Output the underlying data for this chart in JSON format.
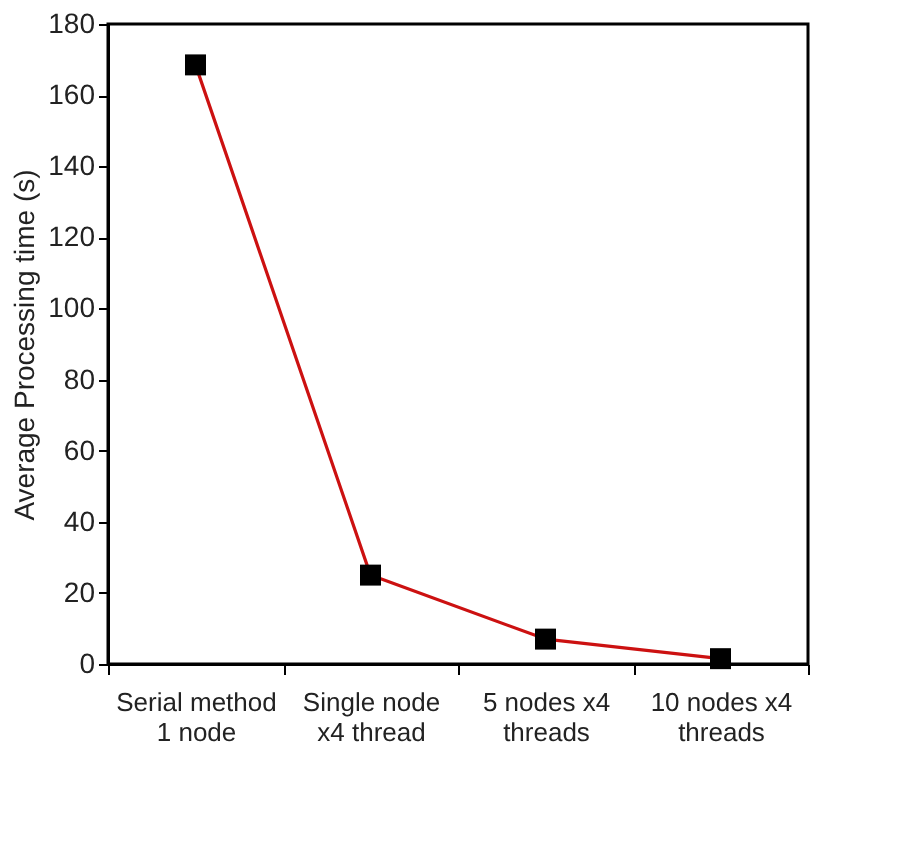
{
  "chart_data": {
    "type": "line",
    "ylabel": "Average Processing time (s)",
    "categories": [
      "Serial method\n1 node",
      "Single node\nx4 thread",
      "5  nodes  x4\nthreads",
      "10  nodes  x4\nthreads"
    ],
    "series": [
      {
        "color": "#cc1111",
        "values": [
          168.5,
          25,
          7,
          1.5
        ]
      }
    ],
    "ylim": [
      0,
      180
    ],
    "yticks": [
      0,
      20,
      40,
      60,
      80,
      100,
      120,
      140,
      160,
      180
    ],
    "marker": "square",
    "line_style": "solid"
  }
}
